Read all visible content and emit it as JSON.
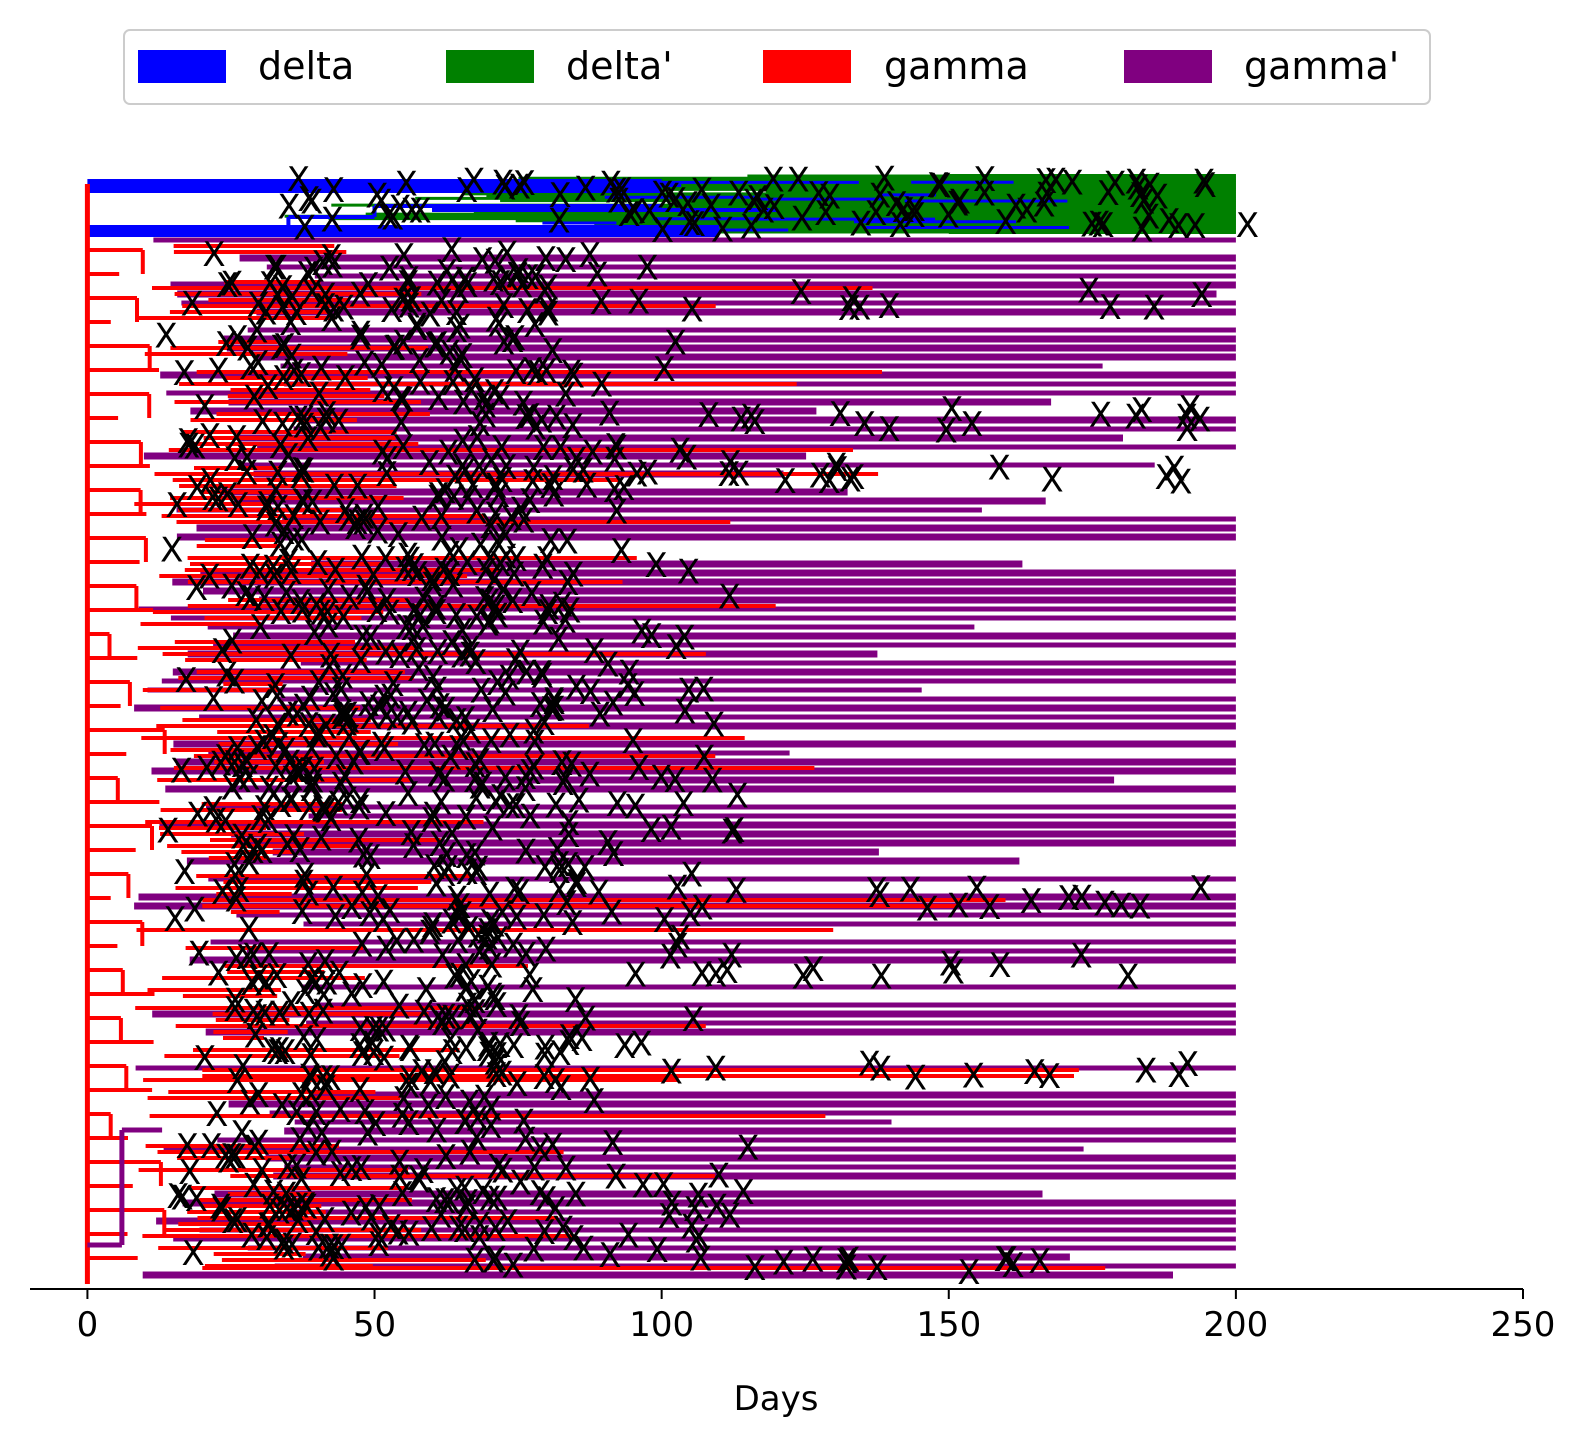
{
  "chart_data": {
    "type": "line",
    "title": "",
    "xlabel": "Days",
    "ylabel": "",
    "xlim": [
      -10,
      250
    ],
    "xticks": [
      0,
      50,
      100,
      150,
      200,
      250
    ],
    "x_tick_labels": [
      "0",
      "50",
      "100",
      "150",
      "200",
      "250"
    ],
    "legend_placement": "top-center",
    "grid": false,
    "y_axis_visible": false,
    "end_day": 200,
    "series": [
      {
        "name": "delta",
        "color": "#0000ff"
      },
      {
        "name": "delta'",
        "color": "#008000"
      },
      {
        "name": "gamma",
        "color": "#ff0000"
      },
      {
        "name": "gamma'",
        "color": "#800080"
      }
    ],
    "event_marker": "X",
    "event_marker_color": "#000000"
  }
}
